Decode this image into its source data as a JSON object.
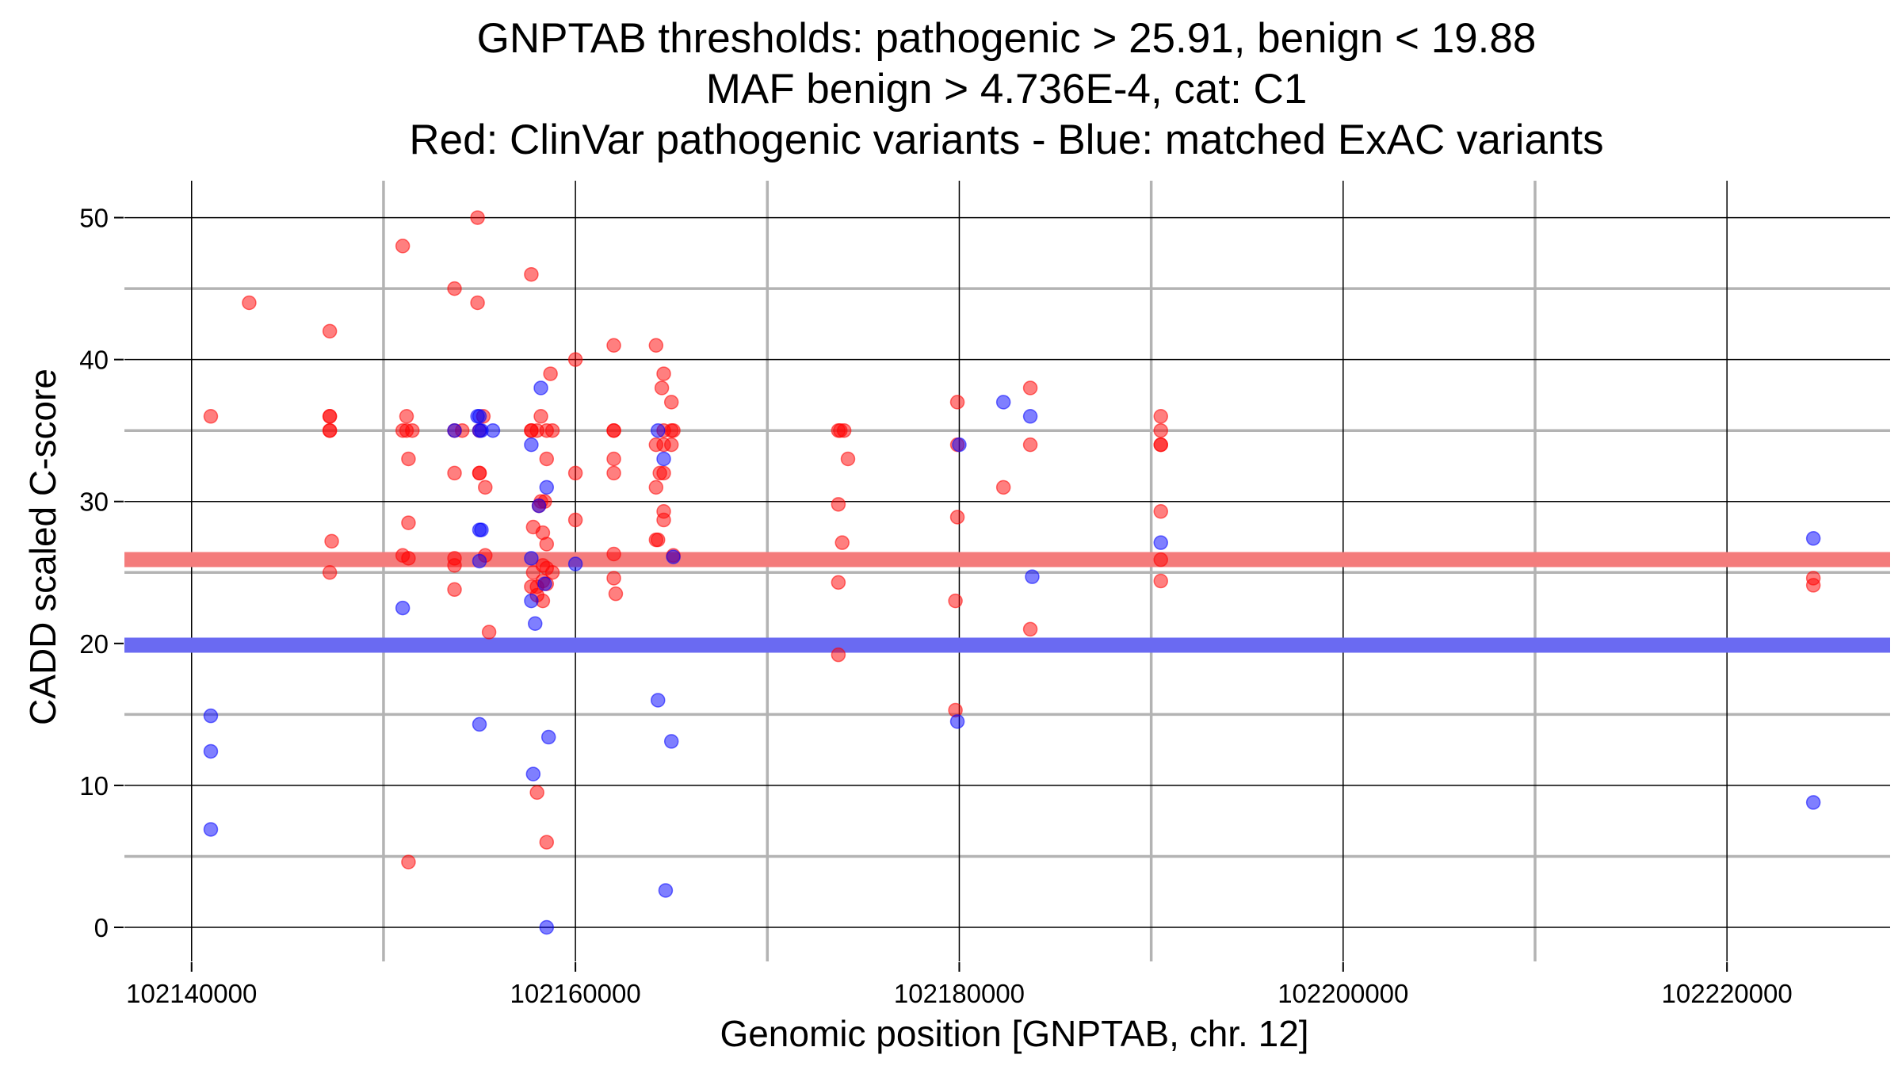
{
  "chart_data": {
    "type": "scatter",
    "title_lines": [
      "GNPTAB thresholds: pathogenic > 25.91, benign < 19.88",
      "MAF benign > 4.736E-4, cat: C1",
      "Red: ClinVar pathogenic variants - Blue: matched ExAC variants"
    ],
    "xlabel": "Genomic position [GNPTAB, chr. 12]",
    "ylabel": "CADD scaled C-score",
    "xlim": [
      102136500,
      102228500
    ],
    "ylim": [
      -2.4,
      52.6
    ],
    "xticks": [
      102140000,
      102160000,
      102180000,
      102200000,
      102220000
    ],
    "xtick_labels": [
      "102140000",
      "102160000",
      "102180000",
      "102200000",
      "102220000"
    ],
    "xminor": [
      102150000,
      102170000,
      102190000,
      102210000
    ],
    "yticks": [
      0,
      10,
      20,
      30,
      40,
      50
    ],
    "ytick_labels": [
      "0",
      "10",
      "20",
      "30",
      "40",
      "50"
    ],
    "yminor": [
      5,
      15,
      25,
      35,
      45
    ],
    "grid": true,
    "thresholds": [
      {
        "value": 25.91,
        "color": "#f47c7c"
      },
      {
        "value": 19.88,
        "color": "#6a6af2"
      }
    ],
    "series": [
      {
        "color": "#ff0000",
        "points": [
          [
            102141000,
            36
          ],
          [
            102143000,
            44
          ],
          [
            102147200,
            42
          ],
          [
            102147200,
            36
          ],
          [
            102147200,
            36
          ],
          [
            102147200,
            35
          ],
          [
            102147200,
            35
          ],
          [
            102147300,
            27.2
          ],
          [
            102147200,
            25
          ],
          [
            102151000,
            48
          ],
          [
            102151000,
            35
          ],
          [
            102151000,
            26.2
          ],
          [
            102151200,
            36
          ],
          [
            102151200,
            35
          ],
          [
            102151300,
            33
          ],
          [
            102151300,
            28.5
          ],
          [
            102151300,
            26
          ],
          [
            102151300,
            4.6
          ],
          [
            102151500,
            35
          ],
          [
            102153700,
            45
          ],
          [
            102153700,
            35
          ],
          [
            102153700,
            32
          ],
          [
            102153700,
            26
          ],
          [
            102153700,
            25.5
          ],
          [
            102153700,
            23.8
          ],
          [
            102154100,
            35
          ],
          [
            102154900,
            50
          ],
          [
            102154900,
            44
          ],
          [
            102155000,
            35
          ],
          [
            102155000,
            32
          ],
          [
            102155200,
            36
          ],
          [
            102155300,
            31
          ],
          [
            102155300,
            26.2
          ],
          [
            102155500,
            20.8
          ],
          [
            102155000,
            32
          ],
          [
            102157700,
            46
          ],
          [
            102157700,
            35
          ],
          [
            102157700,
            35
          ],
          [
            102157800,
            28.2
          ],
          [
            102157800,
            25
          ],
          [
            102157700,
            24
          ],
          [
            102158000,
            35
          ],
          [
            102158000,
            24
          ],
          [
            102158000,
            23.4
          ],
          [
            102158000,
            9.5
          ],
          [
            102158200,
            36
          ],
          [
            102158200,
            30
          ],
          [
            102158300,
            27.8
          ],
          [
            102158300,
            25.5
          ],
          [
            102158300,
            24.4
          ],
          [
            102158300,
            23
          ],
          [
            102158500,
            35
          ],
          [
            102158500,
            33
          ],
          [
            102158500,
            27
          ],
          [
            102158500,
            25.3
          ],
          [
            102158500,
            24.2
          ],
          [
            102158500,
            6
          ],
          [
            102158700,
            39
          ],
          [
            102158800,
            35
          ],
          [
            102158800,
            25
          ],
          [
            102158100,
            29.7
          ],
          [
            102158400,
            30
          ],
          [
            102160000,
            40
          ],
          [
            102160000,
            32
          ],
          [
            102160000,
            28.7
          ],
          [
            102162000,
            41
          ],
          [
            102162000,
            35
          ],
          [
            102162000,
            35
          ],
          [
            102162000,
            33
          ],
          [
            102162000,
            32
          ],
          [
            102162000,
            26.3
          ],
          [
            102162000,
            24.6
          ],
          [
            102162100,
            23.5
          ],
          [
            102164200,
            41
          ],
          [
            102164200,
            34
          ],
          [
            102164200,
            31
          ],
          [
            102164200,
            27.3
          ],
          [
            102164300,
            27.3
          ],
          [
            102164400,
            32
          ],
          [
            102164500,
            38
          ],
          [
            102164600,
            39
          ],
          [
            102164600,
            35
          ],
          [
            102164600,
            34
          ],
          [
            102164600,
            32
          ],
          [
            102164600,
            29.3
          ],
          [
            102164600,
            28.7
          ],
          [
            102165000,
            37
          ],
          [
            102165000,
            35
          ],
          [
            102165000,
            34
          ],
          [
            102165100,
            35
          ],
          [
            102165100,
            26.2
          ],
          [
            102173700,
            35
          ],
          [
            102173800,
            35
          ],
          [
            102174000,
            35
          ],
          [
            102174200,
            33
          ],
          [
            102173700,
            29.8
          ],
          [
            102173900,
            27.1
          ],
          [
            102173700,
            24.3
          ],
          [
            102173700,
            19.2
          ],
          [
            102179900,
            37
          ],
          [
            102179900,
            34
          ],
          [
            102179900,
            28.9
          ],
          [
            102179800,
            23
          ],
          [
            102179800,
            15.3
          ],
          [
            102182300,
            31
          ],
          [
            102183700,
            38
          ],
          [
            102183700,
            34
          ],
          [
            102183700,
            21
          ],
          [
            102190500,
            36
          ],
          [
            102190500,
            35
          ],
          [
            102190500,
            34
          ],
          [
            102190500,
            34
          ],
          [
            102190500,
            29.3
          ],
          [
            102190500,
            25.9
          ],
          [
            102190500,
            24.4
          ],
          [
            102224500,
            24.6
          ],
          [
            102224500,
            24.1
          ]
        ]
      },
      {
        "color": "#0000ff",
        "points": [
          [
            102141000,
            14.9
          ],
          [
            102141000,
            12.4
          ],
          [
            102141000,
            6.9
          ],
          [
            102151000,
            22.5
          ],
          [
            102153700,
            35
          ],
          [
            102154900,
            36
          ],
          [
            102155000,
            36
          ],
          [
            102155000,
            35
          ],
          [
            102155100,
            35
          ],
          [
            102155000,
            28
          ],
          [
            102155100,
            28
          ],
          [
            102155000,
            25.8
          ],
          [
            102155000,
            14.3
          ],
          [
            102155700,
            35
          ],
          [
            102157700,
            34
          ],
          [
            102157700,
            26
          ],
          [
            102157700,
            23
          ],
          [
            102157900,
            21.4
          ],
          [
            102157800,
            10.8
          ],
          [
            102158200,
            38
          ],
          [
            102158500,
            31
          ],
          [
            102158100,
            29.7
          ],
          [
            102158400,
            24.2
          ],
          [
            102158600,
            13.4
          ],
          [
            102158500,
            0
          ],
          [
            102160000,
            25.6
          ],
          [
            102164300,
            35
          ],
          [
            102164300,
            16
          ],
          [
            102164600,
            33
          ],
          [
            102164700,
            2.6
          ],
          [
            102165000,
            13.1
          ],
          [
            102165100,
            26.1
          ],
          [
            102180000,
            34
          ],
          [
            102179900,
            14.5
          ],
          [
            102182300,
            37
          ],
          [
            102183700,
            36
          ],
          [
            102183800,
            24.7
          ],
          [
            102190500,
            27.1
          ],
          [
            102224500,
            27.4
          ],
          [
            102224500,
            8.8
          ]
        ]
      }
    ]
  }
}
